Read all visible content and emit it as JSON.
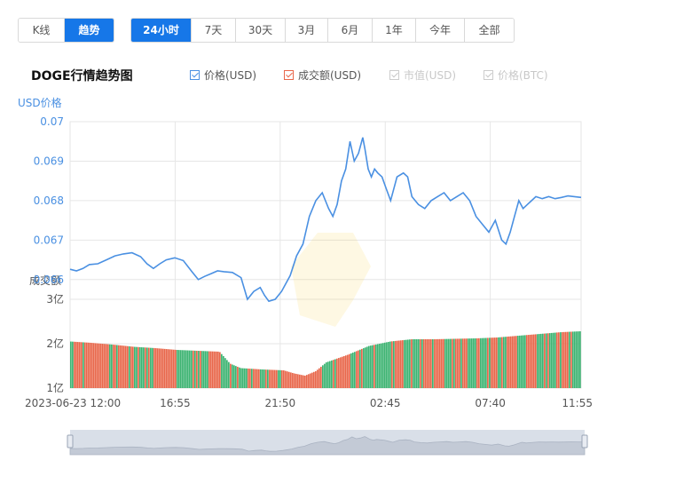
{
  "toolbar": {
    "type_tabs": [
      {
        "label": "K线",
        "active": false
      },
      {
        "label": "趋势",
        "active": true
      }
    ],
    "range_tabs": [
      {
        "label": "24小时",
        "active": true
      },
      {
        "label": "7天",
        "active": false
      },
      {
        "label": "30天",
        "active": false
      },
      {
        "label": "3月",
        "active": false
      },
      {
        "label": "6月",
        "active": false
      },
      {
        "label": "1年",
        "active": false
      },
      {
        "label": "今年",
        "active": false
      },
      {
        "label": "全部",
        "active": false
      }
    ]
  },
  "legend": [
    {
      "label": "价格(USD)",
      "checked": true,
      "color": "#4a90e2"
    },
    {
      "label": "成交额(USD)",
      "checked": true,
      "color": "#e8664a"
    },
    {
      "label": "市值(USD)",
      "checked": false,
      "color": "#c8c8c8"
    },
    {
      "label": "价格(BTC)",
      "checked": false,
      "color": "#c8c8c8"
    }
  ],
  "colors": {
    "price_line": "#4a90e2",
    "vol_up": "#e8664a",
    "vol_down": "#3cb371",
    "grid": "#e6e6e6",
    "navigator": "#d9dfe8"
  },
  "chart_data": {
    "type": "line",
    "title": "DOGE行情趋势图",
    "price_axis": {
      "title": "USD价格",
      "ticks": [
        0.066,
        0.067,
        0.068,
        0.069,
        0.07
      ],
      "ylim": [
        0.0655,
        0.07
      ]
    },
    "volume_axis": {
      "title": "成交额",
      "ticks": [
        "1亿",
        "2亿",
        "3亿"
      ],
      "tick_values": [
        1,
        2,
        3
      ],
      "ylim": [
        1,
        3
      ],
      "unit": "亿"
    },
    "x_ticks": [
      "2023-06-23 12:00",
      "16:55",
      "21:50",
      "02:45",
      "07:40",
      "11:55"
    ],
    "x_tick_hours": [
      0,
      4.9167,
      9.8333,
      14.75,
      19.6667,
      23.9167
    ],
    "x_range_hours": [
      0,
      23.9167
    ],
    "price": {
      "x_hours": [
        0,
        0.3,
        0.6,
        0.9,
        1.3,
        1.7,
        2.1,
        2.5,
        2.9,
        3.3,
        3.6,
        3.9,
        4.2,
        4.5,
        4.9,
        5.3,
        5.7,
        6.0,
        6.3,
        6.6,
        6.9,
        7.2,
        7.6,
        8.0,
        8.3,
        8.6,
        8.9,
        9.1,
        9.3,
        9.6,
        9.9,
        10.3,
        10.6,
        10.9,
        11.2,
        11.5,
        11.8,
        12.1,
        12.3,
        12.5,
        12.7,
        12.9,
        13.1,
        13.3,
        13.5,
        13.7,
        13.8,
        13.95,
        14.1,
        14.25,
        14.4,
        14.6,
        14.8,
        15.0,
        15.3,
        15.6,
        15.8,
        16.0,
        16.3,
        16.6,
        16.9,
        17.2,
        17.5,
        17.8,
        18.1,
        18.4,
        18.7,
        19.0,
        19.3,
        19.6,
        19.9,
        20.2,
        20.4,
        20.6,
        20.8,
        21.0,
        21.2,
        21.4,
        21.6,
        21.8,
        22.1,
        22.4,
        22.7,
        23.0,
        23.3,
        23.6,
        23.9167
      ],
      "values": [
        0.06626,
        0.06622,
        0.06628,
        0.06638,
        0.0664,
        0.0665,
        0.0666,
        0.06665,
        0.06668,
        0.06658,
        0.0664,
        0.06628,
        0.0664,
        0.0665,
        0.06655,
        0.06648,
        0.0662,
        0.066,
        0.06608,
        0.06615,
        0.06622,
        0.0662,
        0.06618,
        0.06605,
        0.0655,
        0.0657,
        0.0658,
        0.0656,
        0.06545,
        0.0655,
        0.0657,
        0.0661,
        0.0666,
        0.0669,
        0.0676,
        0.068,
        0.0682,
        0.0678,
        0.0676,
        0.0679,
        0.0685,
        0.0688,
        0.0695,
        0.069,
        0.0692,
        0.0696,
        0.0693,
        0.0688,
        0.0686,
        0.0688,
        0.0687,
        0.0686,
        0.0683,
        0.068,
        0.0686,
        0.0687,
        0.0686,
        0.0681,
        0.0679,
        0.0678,
        0.068,
        0.0681,
        0.0682,
        0.068,
        0.0681,
        0.0682,
        0.068,
        0.0676,
        0.0674,
        0.0672,
        0.0675,
        0.067,
        0.0669,
        0.0672,
        0.0676,
        0.068,
        0.0678,
        0.0679,
        0.068,
        0.0681,
        0.06805,
        0.0681,
        0.06805,
        0.06808,
        0.06812,
        0.0681,
        0.06808
      ]
    },
    "volume": {
      "x_hours": [
        0,
        1,
        2,
        3,
        4,
        5,
        6,
        7,
        7.5,
        8,
        9,
        10,
        10.5,
        11,
        11.5,
        12,
        13,
        14,
        15,
        16,
        17,
        18,
        19,
        20,
        21,
        22,
        23,
        23.9167
      ],
      "values": [
        2.05,
        2.02,
        1.98,
        1.93,
        1.9,
        1.86,
        1.84,
        1.82,
        1.55,
        1.45,
        1.42,
        1.4,
        1.33,
        1.28,
        1.38,
        1.58,
        1.75,
        1.95,
        2.05,
        2.1,
        2.1,
        2.11,
        2.12,
        2.14,
        2.18,
        2.22,
        2.26,
        2.28
      ]
    }
  }
}
